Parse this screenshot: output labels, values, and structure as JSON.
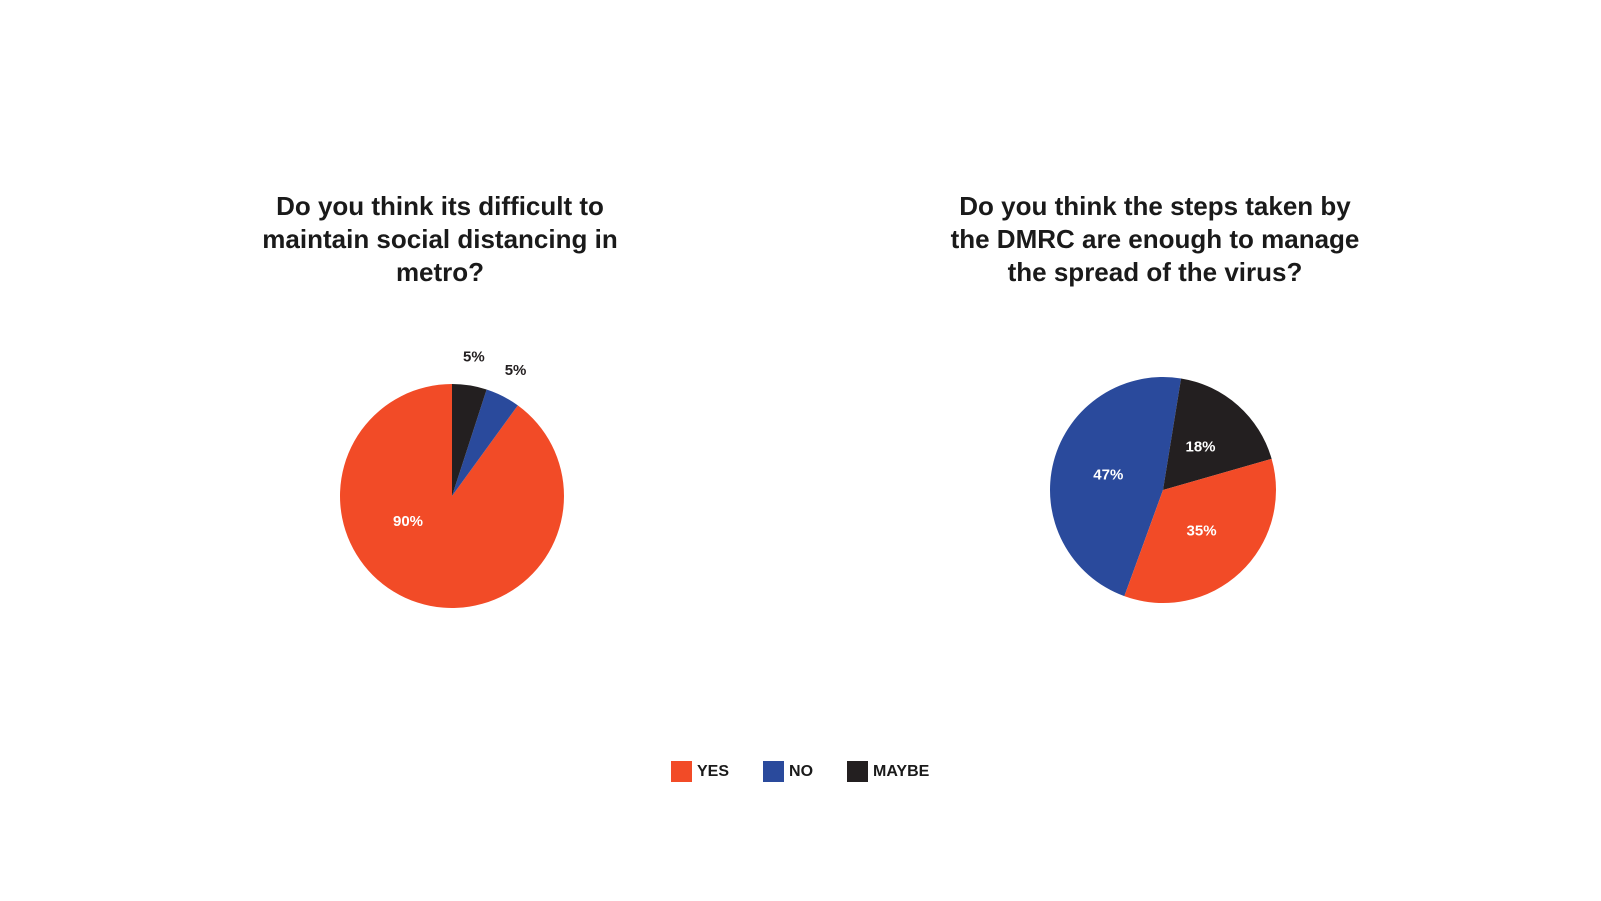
{
  "colors": {
    "yes": "#F24B27",
    "no": "#2A4A9C",
    "maybe": "#231F20"
  },
  "legend": [
    {
      "label": "YES",
      "color_key": "yes"
    },
    {
      "label": "NO",
      "color_key": "no"
    },
    {
      "label": "MAYBE",
      "color_key": "maybe"
    }
  ],
  "chart_data": [
    {
      "type": "pie",
      "title": "Do you think its difficult to maintain social distancing in metro?",
      "slices": [
        {
          "category": "YES",
          "value": 90,
          "label": "90%"
        },
        {
          "category": "NO",
          "value": 5,
          "label": "5%"
        },
        {
          "category": "MAYBE",
          "value": 5,
          "label": "5%"
        }
      ],
      "legend_placement": "bottom"
    },
    {
      "type": "pie",
      "title": "Do you think the steps taken by the DMRC are enough to manage the spread of the virus?",
      "slices": [
        {
          "category": "YES",
          "value": 35,
          "label": "35%"
        },
        {
          "category": "NO",
          "value": 47,
          "label": "47%"
        },
        {
          "category": "MAYBE",
          "value": 18,
          "label": "18%"
        }
      ],
      "legend_placement": "bottom"
    }
  ]
}
